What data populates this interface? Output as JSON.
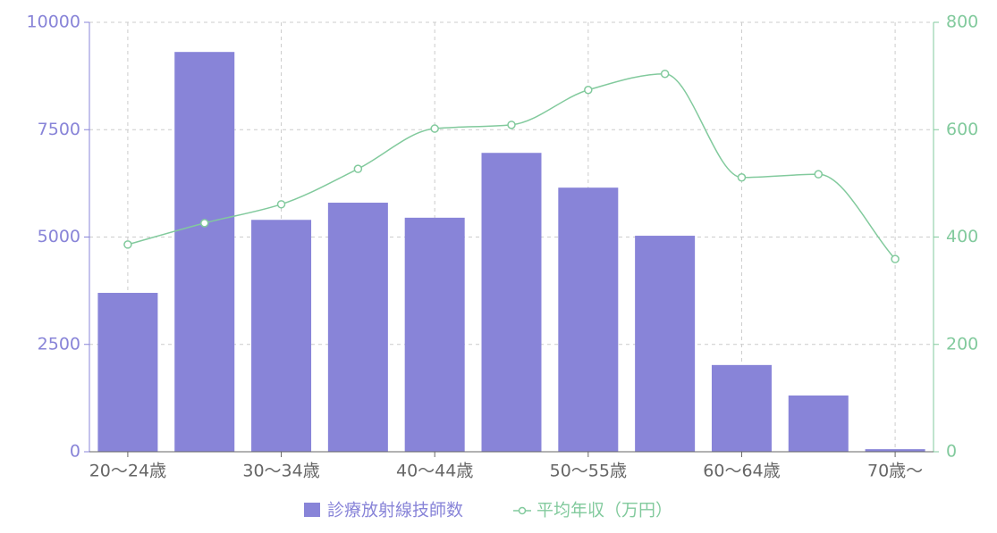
{
  "chart_data": {
    "type": "bar-line",
    "categories": [
      "20〜24歳",
      null,
      "30〜34歳",
      null,
      "40〜44歳",
      null,
      "50〜55歳",
      null,
      "60〜64歳",
      null,
      "70歳〜"
    ],
    "series": [
      {
        "name": "診療放射線技師数",
        "type": "bar",
        "color": "#8884d8",
        "axis": "y",
        "values": [
          3700,
          9310,
          5400,
          5800,
          5450,
          6960,
          6150,
          5030,
          2020,
          1310,
          60
        ]
      },
      {
        "name": "平均年収（万円）",
        "type": "line",
        "color": "#82ca9d",
        "axis": "y2",
        "values": [
          386,
          426,
          461,
          527,
          602,
          609,
          674,
          704,
          511,
          517,
          359
        ]
      }
    ],
    "ylim": [
      0,
      10000
    ],
    "yticks": [
      0,
      2500,
      5000,
      7500,
      10000
    ],
    "y2lim": [
      0,
      800
    ],
    "y2ticks": [
      0,
      200,
      400,
      600,
      800
    ],
    "grid": true,
    "legend": "bottom"
  }
}
